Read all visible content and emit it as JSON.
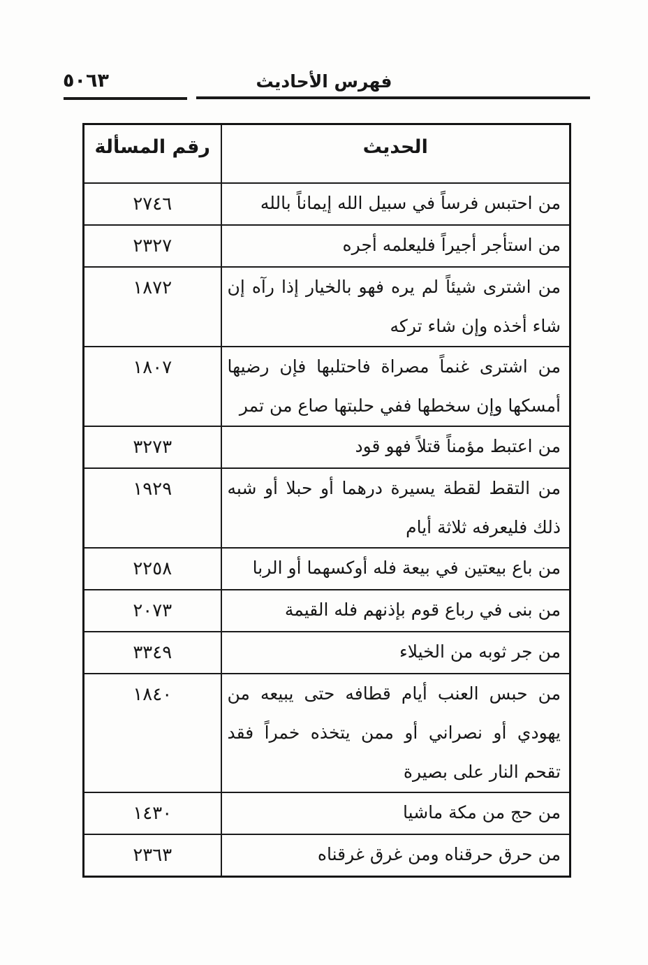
{
  "page": {
    "number": "٥٠٦٣",
    "title": "فهرس الأحاديث"
  },
  "table": {
    "headers": {
      "hadith": "الحديث",
      "number": "رقم المسألة"
    },
    "rows": [
      {
        "number": "٢٧٤٦",
        "text": "من احتبس فرساً في سبيل الله إيماناً بالله"
      },
      {
        "number": "٢٣٢٧",
        "text": "من استأجر أجيراً فليعلمه أجره"
      },
      {
        "number": "١٨٧٢",
        "text": "من اشترى شيئاً لم يره فهو بالخيار إذا رآه إن شاء أخذه وإن شاء تركه"
      },
      {
        "number": "١٨٠٧",
        "text": "من اشترى غنماً مصراة فاحتلبها فإن رضيها أمسكها وإن سخطها ففي حلبتها صاع من تمر"
      },
      {
        "number": "٣٢٧٣",
        "text": "من اعتبط مؤمناً قتلاً فهو قود"
      },
      {
        "number": "١٩٢٩",
        "text": "من التقط لقطة يسيرة درهما أو حبلا أو شبه ذلك فليعرفه ثلاثة أيام"
      },
      {
        "number": "٢٢٥٨",
        "text": "من باع بيعتين في بيعة فله أوكسهما أو الربا"
      },
      {
        "number": "٢٠٧٣",
        "text": "من بنى في رباع قوم بإذنهم فله القيمة"
      },
      {
        "number": "٣٣٤٩",
        "text": "من جر ثوبه من الخيلاء"
      },
      {
        "number": "١٨٤٠",
        "text": "من حبس العنب أيام قطافه حتى يبيعه من يهودي أو نصراني أو ممن يتخذه خمراً فقد تقحم النار على بصيرة"
      },
      {
        "number": "١٤٣٠",
        "text": "من حج من مكة ماشيا"
      },
      {
        "number": "٢٣٦٣",
        "text": "من حرق حرقناه ومن غرق غرقناه"
      }
    ]
  },
  "colors": {
    "ink": "#161616",
    "paper": "#fdfdfc"
  }
}
